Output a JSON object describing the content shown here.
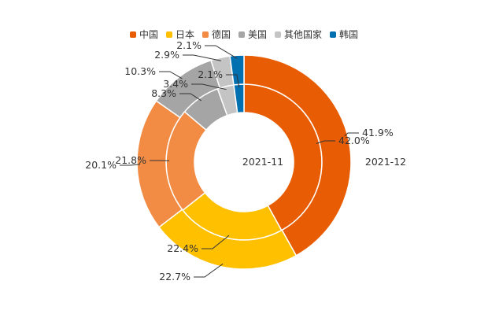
{
  "chart_data": {
    "type": "pie",
    "subtype": "nested-donut",
    "categories": [
      "中国",
      "日本",
      "德国",
      "美国",
      "其他国家",
      "韩国"
    ],
    "colors": [
      "#E85D04",
      "#FFC000",
      "#F28C45",
      "#A5A5A5",
      "#C4C4C4",
      "#0070B0"
    ],
    "series": [
      {
        "name": "2021-11",
        "ring": "inner",
        "values": [
          42.0,
          22.4,
          21.8,
          8.3,
          3.4,
          2.1
        ],
        "labels": [
          "42.0%",
          "22.4%",
          "21.8%",
          "8.3%",
          "3.4%",
          "2.1%"
        ]
      },
      {
        "name": "2021-12",
        "ring": "outer",
        "values": [
          41.9,
          22.7,
          20.1,
          10.3,
          2.9,
          2.1
        ],
        "labels": [
          "41.9%",
          "22.7%",
          "20.1%",
          "10.3%",
          "2.9%",
          "2.1%"
        ]
      }
    ],
    "legend_position": "top",
    "start": "top, clockwise"
  }
}
